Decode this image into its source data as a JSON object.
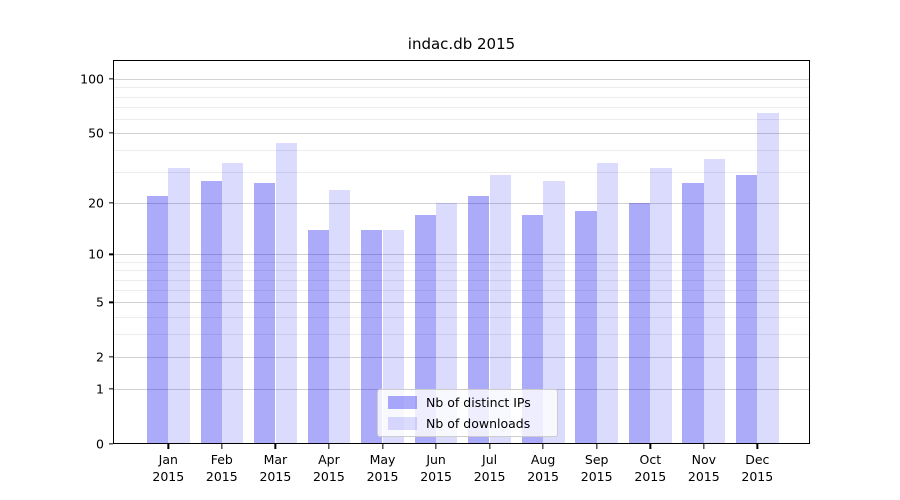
{
  "title": "indac.db 2015",
  "legend": {
    "items": [
      {
        "label": "Nb of distinct IPs",
        "series_key": "ips"
      },
      {
        "label": "Nb of downloads",
        "series_key": "downloads"
      }
    ]
  },
  "chart_data": {
    "type": "bar",
    "title": "indac.db 2015",
    "categories": [
      "Jan",
      "Feb",
      "Mar",
      "Apr",
      "May",
      "Jun",
      "Jul",
      "Aug",
      "Sep",
      "Oct",
      "Nov",
      "Dec"
    ],
    "xtick_year": "2015",
    "series": [
      {
        "name": "Nb of distinct IPs",
        "values": [
          22,
          27,
          26,
          14,
          14,
          17,
          22,
          17,
          18,
          20,
          26,
          29
        ]
      },
      {
        "name": "Nb of downloads",
        "values": [
          32,
          34,
          44,
          24,
          14,
          20,
          29,
          27,
          34,
          32,
          36,
          65
        ]
      }
    ],
    "yscale": "log1p",
    "ylim": [
      0,
      127.5
    ],
    "yticks": [
      0,
      1,
      2,
      5,
      10,
      20,
      50,
      100
    ],
    "ytick_labels": [
      "0",
      "1",
      "2",
      "5",
      "10",
      "20",
      "50",
      "100"
    ],
    "minor_gridlines": [
      3,
      4,
      6,
      7,
      8,
      9,
      30,
      40,
      60,
      70,
      80,
      90
    ],
    "grid": true,
    "legend_position": "lower center"
  },
  "colors": {
    "bar_ips": "rgba(15,15,240,0.35)",
    "bar_downloads": "rgba(15,15,240,0.15)",
    "grid_major": "#d2d2d2",
    "grid_minor": "#ececec",
    "spine": "#000000",
    "text": "#000000",
    "legend_border": "#cccccc",
    "legend_bg": "rgba(255,255,255,0.8)"
  }
}
